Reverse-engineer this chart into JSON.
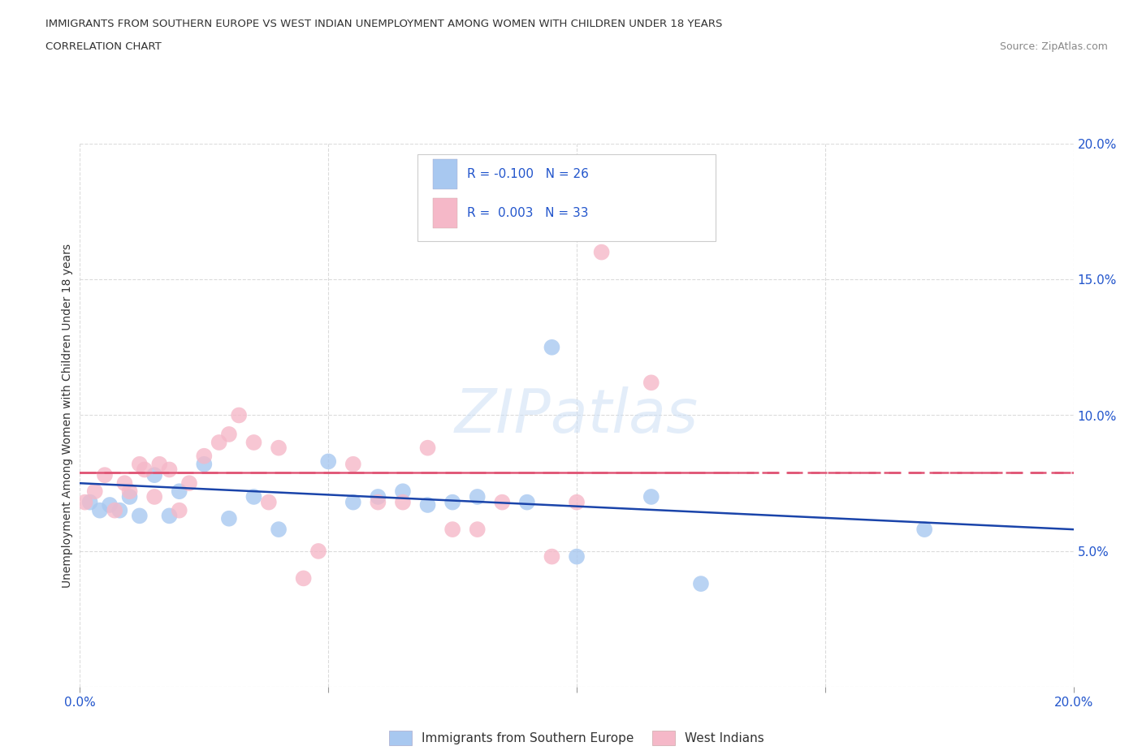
{
  "title_line1": "IMMIGRANTS FROM SOUTHERN EUROPE VS WEST INDIAN UNEMPLOYMENT AMONG WOMEN WITH CHILDREN UNDER 18 YEARS",
  "title_line2": "CORRELATION CHART",
  "source": "Source: ZipAtlas.com",
  "ylabel": "Unemployment Among Women with Children Under 18 years",
  "xlim": [
    0.0,
    0.2
  ],
  "ylim": [
    0.0,
    0.2
  ],
  "xticks": [
    0.0,
    0.05,
    0.1,
    0.15,
    0.2
  ],
  "yticks": [
    0.0,
    0.05,
    0.1,
    0.15,
    0.2
  ],
  "grid_color": "#cccccc",
  "background_color": "#ffffff",
  "blue_color": "#a8c8f0",
  "pink_color": "#f5b8c8",
  "blue_line_color": "#1a44aa",
  "pink_line_color": "#e05575",
  "axis_label_color": "#2255cc",
  "text_color": "#333333",
  "source_color": "#888888",
  "blue_R": -0.1,
  "blue_N": 26,
  "pink_R": 0.003,
  "pink_N": 33,
  "watermark": "ZIPatlas",
  "legend_label_blue": "Immigrants from Southern Europe",
  "legend_label_pink": "West Indians",
  "blue_scatter_x": [
    0.002,
    0.004,
    0.006,
    0.008,
    0.01,
    0.012,
    0.015,
    0.018,
    0.02,
    0.025,
    0.03,
    0.035,
    0.04,
    0.05,
    0.055,
    0.06,
    0.065,
    0.07,
    0.075,
    0.08,
    0.09,
    0.095,
    0.1,
    0.115,
    0.125,
    0.17
  ],
  "blue_scatter_y": [
    0.068,
    0.065,
    0.067,
    0.065,
    0.07,
    0.063,
    0.078,
    0.063,
    0.072,
    0.082,
    0.062,
    0.07,
    0.058,
    0.083,
    0.068,
    0.07,
    0.072,
    0.067,
    0.068,
    0.07,
    0.068,
    0.125,
    0.048,
    0.07,
    0.038,
    0.058
  ],
  "pink_scatter_x": [
    0.001,
    0.003,
    0.005,
    0.007,
    0.009,
    0.01,
    0.012,
    0.013,
    0.015,
    0.016,
    0.018,
    0.02,
    0.022,
    0.025,
    0.028,
    0.03,
    0.032,
    0.035,
    0.038,
    0.04,
    0.045,
    0.048,
    0.055,
    0.06,
    0.065,
    0.07,
    0.075,
    0.08,
    0.085,
    0.095,
    0.1,
    0.105,
    0.115
  ],
  "pink_scatter_y": [
    0.068,
    0.072,
    0.078,
    0.065,
    0.075,
    0.072,
    0.082,
    0.08,
    0.07,
    0.082,
    0.08,
    0.065,
    0.075,
    0.085,
    0.09,
    0.093,
    0.1,
    0.09,
    0.068,
    0.088,
    0.04,
    0.05,
    0.082,
    0.068,
    0.068,
    0.088,
    0.058,
    0.058,
    0.068,
    0.048,
    0.068,
    0.16,
    0.112
  ]
}
